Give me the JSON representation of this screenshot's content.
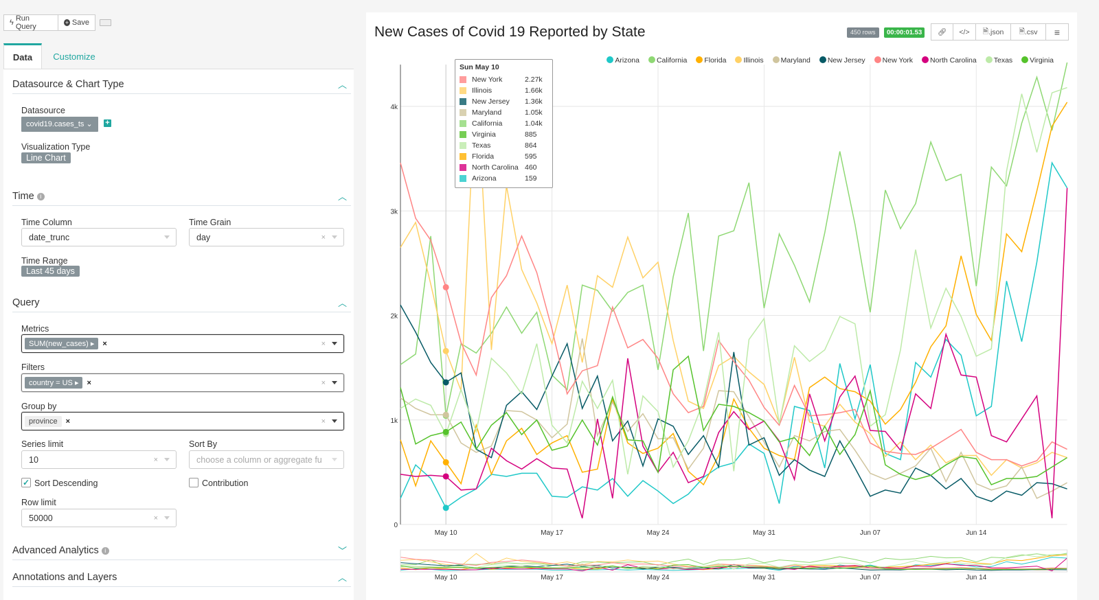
{
  "toolbar": {
    "run_query": "Run Query",
    "save": "Save"
  },
  "tabs": [
    {
      "label": "Data"
    },
    {
      "label": "Customize"
    }
  ],
  "sections": {
    "datasource": {
      "title": "Datasource & Chart Type",
      "datasource_label": "Datasource",
      "datasource_value": "covid19.cases_ts",
      "viz_label": "Visualization Type",
      "viz_value": "Line Chart"
    },
    "time": {
      "title": "Time",
      "column_label": "Time Column",
      "column_value": "date_trunc",
      "grain_label": "Time Grain",
      "grain_value": "day",
      "range_label": "Time Range",
      "range_value": "Last 45 days"
    },
    "query": {
      "title": "Query",
      "metrics_label": "Metrics",
      "metric_tag": "SUM(new_cases)",
      "filters_label": "Filters",
      "filter_tag": "country = US",
      "groupby_label": "Group by",
      "groupby_tag": "province",
      "series_limit_label": "Series limit",
      "series_limit_value": "10",
      "sort_by_label": "Sort By",
      "sort_by_placeholder": "choose a column or aggregate fu",
      "sort_desc_label": "Sort Descending",
      "sort_desc_checked": true,
      "contribution_label": "Contribution",
      "contribution_checked": false,
      "row_limit_label": "Row limit",
      "row_limit_value": "50000"
    },
    "advanced": {
      "title": "Advanced Analytics"
    },
    "annotations": {
      "title": "Annotations and Layers"
    }
  },
  "chart_header": {
    "title": "New Cases of Covid 19 Reported by State",
    "rows_badge": "450 rows",
    "timer_badge": "00:00:01.53",
    "json_label": ".json",
    "csv_label": ".csv",
    "accent_green": "#3ab54a"
  },
  "tooltip": {
    "title": "Sun May 10",
    "rows": [
      {
        "name": "New York",
        "value": "2.27k"
      },
      {
        "name": "Illinois",
        "value": "1.66k"
      },
      {
        "name": "New Jersey",
        "value": "1.36k"
      },
      {
        "name": "Maryland",
        "value": "1.05k"
      },
      {
        "name": "California",
        "value": "1.04k"
      },
      {
        "name": "Virginia",
        "value": "885"
      },
      {
        "name": "Texas",
        "value": "864"
      },
      {
        "name": "Florida",
        "value": "595"
      },
      {
        "name": "North Carolina",
        "value": "460"
      },
      {
        "name": "Arizona",
        "value": "159"
      }
    ]
  },
  "chart_data": {
    "type": "line",
    "title": "New Cases of Covid 19 Reported by State",
    "legend_position": "top-right",
    "grid": true,
    "ylim": [
      0,
      4400
    ],
    "yticks": [
      {
        "v": 0,
        "label": "0"
      },
      {
        "v": 1000,
        "label": "1k"
      },
      {
        "v": 2000,
        "label": "2k"
      },
      {
        "v": 3000,
        "label": "3k"
      },
      {
        "v": 4000,
        "label": "4k"
      }
    ],
    "xticks": [
      "May 10",
      "May 17",
      "May 24",
      "May 31",
      "Jun 07",
      "Jun 14"
    ],
    "highlight_x": "May 10",
    "x": [
      "May 07",
      "May 08",
      "May 09",
      "May 10",
      "May 11",
      "May 12",
      "May 13",
      "May 14",
      "May 15",
      "May 16",
      "May 17",
      "May 18",
      "May 19",
      "May 20",
      "May 21",
      "May 22",
      "May 23",
      "May 24",
      "May 25",
      "May 26",
      "May 27",
      "May 28",
      "May 29",
      "May 30",
      "May 31",
      "Jun 01",
      "Jun 02",
      "Jun 03",
      "Jun 04",
      "Jun 05",
      "Jun 06",
      "Jun 07",
      "Jun 08",
      "Jun 09",
      "Jun 10",
      "Jun 11",
      "Jun 12",
      "Jun 13",
      "Jun 14",
      "Jun 15",
      "Jun 16",
      "Jun 17",
      "Jun 18",
      "Jun 19",
      "Jun 20"
    ],
    "series": [
      {
        "name": "Arizona",
        "color": "#1fc8c8",
        "values": [
          250,
          570,
          440,
          159,
          260,
          340,
          480,
          460,
          490,
          490,
          270,
          260,
          360,
          330,
          440,
          270,
          420,
          320,
          200,
          290,
          450,
          550,
          590,
          770,
          680,
          200,
          1130,
          1090,
          540,
          1540,
          1010,
          1530,
          680,
          620,
          1550,
          1410,
          1770,
          1620,
          1040,
          1130,
          2330,
          1750,
          2510,
          3460,
          3220
        ]
      },
      {
        "name": "California",
        "color": "#8fd874",
        "values": [
          1530,
          1630,
          2760,
          1040,
          1730,
          1640,
          1830,
          2080,
          1830,
          2030,
          1430,
          1290,
          2290,
          2240,
          2040,
          2220,
          2290,
          1480,
          2370,
          2980,
          1660,
          2760,
          2810,
          3270,
          2070,
          2780,
          2480,
          2130,
          2790,
          3570,
          2870,
          2030,
          3200,
          2830,
          3070,
          3660,
          3290,
          3350,
          2280,
          3420,
          3240,
          3840,
          4280,
          3770,
          4420
        ]
      },
      {
        "name": "Florida",
        "color": "#ffb000",
        "values": [
          810,
          370,
          800,
          595,
          390,
          950,
          480,
          800,
          920,
          670,
          780,
          850,
          500,
          530,
          1200,
          780,
          680,
          730,
          870,
          510,
          380,
          660,
          1200,
          920,
          730,
          660,
          620,
          1310,
          1410,
          1300,
          1270,
          1180,
          960,
          1100,
          1360,
          1700,
          1900,
          2570,
          2010,
          1760,
          2780,
          2610,
          3190,
          3810,
          4040
        ]
      },
      {
        "name": "Illinois",
        "color": "#ffd166",
        "values": [
          2650,
          2890,
          2300,
          1660,
          1280,
          4350,
          1670,
          3240,
          2440,
          2120,
          1730,
          2290,
          1550,
          2380,
          2270,
          2750,
          2360,
          2510,
          1760,
          1180,
          1110,
          1520,
          1610,
          1460,
          1340,
          970,
          1600,
          980,
          940,
          1150,
          980,
          870,
          650,
          790,
          620,
          760,
          590,
          660,
          660,
          470,
          620,
          540,
          590,
          690,
          640
        ]
      },
      {
        "name": "Maryland",
        "color": "#d0c59e",
        "values": [
          1210,
          1110,
          1050,
          1050,
          780,
          690,
          750,
          1090,
          1080,
          1000,
          830,
          960,
          1780,
          850,
          1170,
          890,
          1060,
          820,
          830,
          530,
          730,
          1280,
          1270,
          1030,
          790,
          550,
          850,
          800,
          890,
          910,
          710,
          490,
          430,
          490,
          560,
          730,
          410,
          690,
          390,
          330,
          370,
          550,
          250,
          320,
          400
        ]
      },
      {
        "name": "New Jersey",
        "color": "#075a66",
        "values": [
          2100,
          1840,
          1550,
          1360,
          1450,
          720,
          640,
          1140,
          1270,
          1100,
          1420,
          1730,
          1110,
          1420,
          800,
          990,
          560,
          1010,
          940,
          670,
          850,
          550,
          1650,
          760,
          830,
          470,
          620,
          520,
          460,
          800,
          540,
          270,
          330,
          300,
          540,
          470,
          340,
          440,
          270,
          220,
          320,
          280,
          400,
          390,
          340
        ]
      },
      {
        "name": "New York",
        "color": "#ff8585",
        "values": [
          3460,
          2930,
          2720,
          2270,
          1740,
          1430,
          2170,
          2380,
          2760,
          2410,
          1870,
          1250,
          1470,
          1520,
          2080,
          1690,
          1770,
          1590,
          1250,
          1070,
          1130,
          1760,
          1560,
          1380,
          1120,
          950,
          1330,
          1040,
          1050,
          1070,
          1100,
          780,
          700,
          680,
          670,
          730,
          820,
          910,
          690,
          620,
          620,
          560,
          610,
          790,
          720
        ]
      },
      {
        "name": "North Carolina",
        "color": "#d4007e",
        "values": [
          480,
          460,
          470,
          460,
          330,
          340,
          730,
          610,
          530,
          630,
          540,
          530,
          60,
          1010,
          250,
          1590,
          750,
          500,
          690,
          400,
          460,
          880,
          1080,
          910,
          990,
          800,
          430,
          1250,
          800,
          1220,
          1420,
          900,
          890,
          710,
          1250,
          1110,
          1820,
          1430,
          1410,
          850,
          790,
          1010,
          1230,
          60,
          3220
        ]
      },
      {
        "name": "Texas",
        "color": "#bdeaa8",
        "values": [
          1110,
          1200,
          1140,
          864,
          1290,
          890,
          1590,
          1450,
          1250,
          1730,
          950,
          780,
          1370,
          1110,
          1380,
          480,
          1230,
          1080,
          550,
          800,
          1180,
          1840,
          510,
          1770,
          1970,
          960,
          1710,
          1560,
          1670,
          1990,
          1920,
          940,
          1050,
          1670,
          2630,
          1880,
          2260,
          1990,
          1610,
          1680,
          3380,
          4120,
          3560,
          4130,
          4180
        ]
      },
      {
        "name": "Virginia",
        "color": "#55c22b",
        "values": [
          1310,
          770,
          850,
          885,
          980,
          720,
          950,
          1070,
          860,
          1000,
          710,
          750,
          1000,
          760,
          1220,
          810,
          800,
          500,
          1480,
          1610,
          900,
          1150,
          1130,
          1070,
          990,
          790,
          830,
          660,
          940,
          670,
          860,
          1280,
          570,
          480,
          430,
          470,
          570,
          650,
          630,
          380,
          440,
          440,
          460,
          550,
          640
        ]
      }
    ]
  }
}
